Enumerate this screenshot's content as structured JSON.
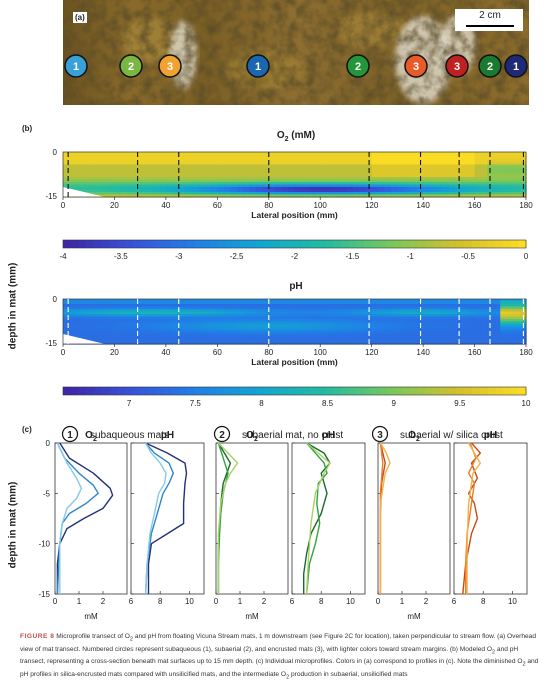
{
  "panel_a": {
    "letter": "(a)",
    "scale_label": "2 cm",
    "markers": [
      {
        "label": "1",
        "color": "#3aa0d8"
      },
      {
        "label": "2",
        "color": "#7ab642"
      },
      {
        "label": "3",
        "color": "#f0a230"
      },
      {
        "label": "1",
        "color": "#1a66b0"
      },
      {
        "label": "2",
        "color": "#24963a"
      },
      {
        "label": "3",
        "color": "#ea5a28"
      },
      {
        "label": "3",
        "color": "#c02020"
      },
      {
        "label": "2",
        "color": "#1a7a30"
      },
      {
        "label": "1",
        "color": "#1e2a78"
      }
    ]
  },
  "panel_b": {
    "letter": "(b)",
    "ylabel": "depth in mat (mm)",
    "o2": {
      "title_main": "O",
      "title_sub": "2",
      "title_tail": " (mM)",
      "xlabel": "Lateral position (mm)",
      "x_ticks": [
        "0",
        "20",
        "40",
        "60",
        "80",
        "100",
        "120",
        "140",
        "160",
        "180"
      ],
      "y_ticks": [
        "0",
        "-15"
      ],
      "profile_lines_mm": [
        2,
        29,
        45,
        80,
        119,
        139,
        154,
        166,
        179
      ],
      "colorbar_ticks": [
        "-4",
        "-3.5",
        "-3",
        "-2.5",
        "-2",
        "-1.5",
        "-1",
        "-0.5",
        "0"
      ]
    },
    "ph": {
      "title": "pH",
      "xlabel": "Lateral position (mm)",
      "x_ticks": [
        "0",
        "20",
        "40",
        "60",
        "80",
        "100",
        "120",
        "140",
        "160",
        "180"
      ],
      "y_ticks": [
        "0",
        "-15"
      ],
      "profile_lines_mm": [
        2,
        29,
        45,
        80,
        119,
        139,
        154,
        166,
        179
      ],
      "colorbar_ticks": [
        "7",
        "7.5",
        "8",
        "8.5",
        "9",
        "9.5",
        "10"
      ]
    }
  },
  "panel_c": {
    "letter": "(c)",
    "ylabel": "depth in mat (mm)",
    "groups": [
      {
        "num": "1",
        "label": "subaqueous mats"
      },
      {
        "num": "2",
        "label": "subaerial mat, no crust"
      },
      {
        "num": "3",
        "label": "subaerial w/ silica crust"
      }
    ],
    "o2_label_main": "O",
    "o2_label_sub": "2",
    "ph_label": "pH",
    "o2_xticks": [
      "0",
      "1",
      "2"
    ],
    "ph_xticks": [
      "6",
      "8",
      "10"
    ],
    "y_ticks": [
      "0",
      "-5",
      "-10",
      "-15"
    ],
    "unit_label": "mM"
  },
  "chart_data": [
    {
      "type": "heatmap",
      "title": "O2 (mM)",
      "xlabel": "Lateral position (mm)",
      "ylabel": "depth in mat (mm)",
      "xlim": [
        0,
        180
      ],
      "ylim": [
        -15,
        0
      ],
      "colorbar_range": [
        -4,
        0
      ],
      "colormap": "parula"
    },
    {
      "type": "heatmap",
      "title": "pH",
      "xlabel": "Lateral position (mm)",
      "ylabel": "depth in mat (mm)",
      "xlim": [
        0,
        180
      ],
      "ylim": [
        -15,
        0
      ],
      "colorbar_range": [
        7,
        10
      ],
      "colormap": "parula"
    },
    {
      "type": "line",
      "group": "subaqueous mats",
      "variable": "O2",
      "xlim": [
        0,
        3
      ],
      "ylim": [
        -15,
        0
      ],
      "series": [
        {
          "color": "#24307a",
          "x": [
            0.2,
            0.6,
            1.6,
            2.3,
            2.4,
            2.0,
            1.2,
            0.5,
            0.2,
            0.1,
            0.1
          ],
          "y": [
            0,
            -1.5,
            -3,
            -4.5,
            -5.2,
            -6.5,
            -7.5,
            -8.5,
            -10,
            -12,
            -15
          ]
        },
        {
          "color": "#2e86c8",
          "x": [
            0.1,
            0.4,
            1.0,
            1.6,
            1.8,
            1.3,
            0.6,
            0.3,
            0.2,
            0.1
          ],
          "y": [
            0,
            -1.5,
            -3,
            -4.2,
            -5,
            -6,
            -7,
            -8,
            -10,
            -15
          ]
        },
        {
          "color": "#86c8e8",
          "x": [
            0.1,
            0.5,
            0.9,
            1.1,
            0.9,
            0.5,
            0.3,
            0.2,
            0.2
          ],
          "y": [
            0,
            -2,
            -3.5,
            -4.5,
            -5.5,
            -6.5,
            -8,
            -10,
            -15
          ]
        }
      ]
    },
    {
      "type": "line",
      "group": "subaqueous mats",
      "variable": "pH",
      "xlim": [
        6,
        11
      ],
      "ylim": [
        -15,
        0
      ],
      "series": [
        {
          "color": "#24307a",
          "x": [
            7.0,
            8.5,
            9.7,
            9.8,
            9.7,
            9.6,
            9.6,
            8.5,
            7.4,
            7.2,
            7.2
          ],
          "y": [
            0,
            -1,
            -2,
            -3,
            -4,
            -6,
            -8,
            -9,
            -10,
            -12,
            -15
          ]
        },
        {
          "color": "#2e86c8",
          "x": [
            7.0,
            7.6,
            8.6,
            8.9,
            8.6,
            8.2,
            7.8,
            7.4,
            7.1,
            7.0
          ],
          "y": [
            0,
            -1,
            -2,
            -3,
            -4,
            -5,
            -7,
            -9,
            -12,
            -15
          ]
        },
        {
          "color": "#86c8e8",
          "x": [
            7.0,
            7.4,
            8.0,
            8.4,
            8.3,
            7.9,
            7.6,
            7.3,
            7.1,
            7.0
          ],
          "y": [
            0,
            -1,
            -2,
            -3,
            -4,
            -5,
            -7,
            -9,
            -12,
            -15
          ]
        }
      ]
    },
    {
      "type": "line",
      "group": "subaerial mat, no crust",
      "variable": "O2",
      "xlim": [
        0,
        3
      ],
      "ylim": [
        -15,
        0
      ],
      "series": [
        {
          "color": "#1a6a2a",
          "x": [
            0.1,
            0.6,
            0.3,
            0.2,
            0.15,
            0.1,
            0.1,
            0.1
          ],
          "y": [
            0,
            -2,
            -4,
            -6,
            -8,
            -10,
            -12,
            -15
          ]
        },
        {
          "color": "#35a040",
          "x": [
            0.1,
            0.3,
            0.5,
            0.3,
            0.2,
            0.15,
            0.1,
            0.1
          ],
          "y": [
            0,
            -1.5,
            -3,
            -5,
            -7,
            -9,
            -12,
            -15
          ]
        },
        {
          "color": "#a6d26a",
          "x": [
            0.1,
            0.9,
            0.6,
            0.4,
            0.2,
            0.1,
            0.1
          ],
          "y": [
            0,
            -2,
            -3,
            -4,
            -6,
            -9,
            -15
          ]
        }
      ]
    },
    {
      "type": "line",
      "group": "subaerial mat, no crust",
      "variable": "pH",
      "xlim": [
        6,
        11
      ],
      "ylim": [
        -15,
        0
      ],
      "series": [
        {
          "color": "#1a6a2a",
          "x": [
            7.0,
            8.2,
            8.6,
            8.0,
            8.4,
            8.0,
            7.3,
            7.0,
            6.8,
            6.8
          ],
          "y": [
            0,
            -1,
            -2,
            -3,
            -5,
            -7,
            -9,
            -11,
            -13,
            -15
          ]
        },
        {
          "color": "#35a040",
          "x": [
            7.0,
            7.6,
            8.2,
            8.4,
            7.8,
            7.7,
            7.9,
            7.6,
            7.2,
            7.0
          ],
          "y": [
            0,
            -1,
            -2,
            -3,
            -4,
            -6,
            -8,
            -10,
            -12,
            -15
          ]
        },
        {
          "color": "#a6d26a",
          "x": [
            7.0,
            7.8,
            8.6,
            8.2,
            7.6,
            7.3,
            7.1,
            7.0
          ],
          "y": [
            0,
            -1,
            -2,
            -3,
            -5,
            -8,
            -12,
            -15
          ]
        }
      ]
    },
    {
      "type": "line",
      "group": "subaerial w/ silica crust",
      "variable": "O2",
      "xlim": [
        0,
        3
      ],
      "ylim": [
        -15,
        0
      ],
      "series": [
        {
          "color": "#c84a14",
          "x": [
            0.1,
            0.3,
            0.15,
            0.1,
            0.1,
            0.1
          ],
          "y": [
            0,
            -2,
            -4,
            -7,
            -10,
            -15
          ]
        },
        {
          "color": "#ee7a2a",
          "x": [
            0.1,
            0.2,
            0.1,
            0.1,
            0.1
          ],
          "y": [
            0,
            -2,
            -5,
            -9,
            -15
          ]
        },
        {
          "color": "#f6b046",
          "x": [
            0.1,
            0.35,
            0.5,
            0.3,
            0.1,
            0.1
          ],
          "y": [
            0,
            -1,
            -2,
            -3,
            -6,
            -15
          ]
        }
      ]
    },
    {
      "type": "line",
      "group": "subaerial w/ silica crust",
      "variable": "pH",
      "xlim": [
        6,
        11
      ],
      "ylim": [
        -15,
        0
      ],
      "series": [
        {
          "color": "#c84a14",
          "x": [
            7.2,
            7.8,
            7.2,
            7.6,
            7.0,
            7.4,
            7.6,
            7.2,
            6.8,
            6.6
          ],
          "y": [
            0,
            -1,
            -2,
            -3.5,
            -5,
            -6,
            -7.5,
            -9,
            -12,
            -15
          ]
        },
        {
          "color": "#ee7a2a",
          "x": [
            7.1,
            7.5,
            7.0,
            7.4,
            7.2,
            6.9,
            6.8,
            6.8
          ],
          "y": [
            0,
            -1.5,
            -3,
            -4,
            -6,
            -9,
            -12,
            -15
          ]
        },
        {
          "color": "#f6b046",
          "x": [
            7.0,
            7.4,
            7.8,
            7.3,
            7.0,
            6.9,
            6.9
          ],
          "y": [
            0,
            -1,
            -2,
            -3,
            -6,
            -10,
            -15
          ]
        }
      ]
    }
  ],
  "caption": {
    "fig_label": "FIGURE 8",
    "text_1": "  Microprofile transect of O",
    "sub_1": "2",
    "text_2": " and pH from floating Vicuna Stream mats, 1 m downstream (see Figure 2C for location), taken perpendicular to stream flow. (a) Overhead view of mat transect. Numbered circles represent subaqueous (1), subaerial (2), and encrusted mats (3), with lighter colors toward stream margins. (b) Modeled O",
    "sub_2": "2",
    "text_3": " and pH transect, representing a cross-section beneath mat surfaces up to 15 mm depth. (c) Individual microprofiles. Colors in (a) correspond to profiles in (c). Note the diminished O",
    "sub_3": "2",
    "text_4": " and pH profiles in silica-encrusted mats compared with unsilicified mats, and the intermediate O",
    "sub_4": "2",
    "text_5": " production in subaerial, unsilicified mats"
  }
}
